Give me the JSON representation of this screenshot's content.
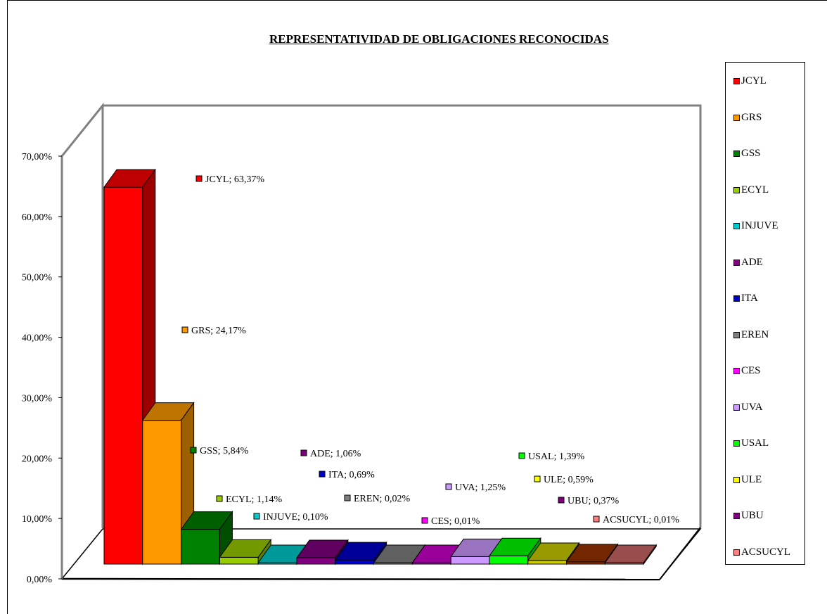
{
  "chart_data": {
    "type": "bar",
    "title": "REPRESENTATIVIDAD DE OBLIGACIONES RECONOCIDAS",
    "categories": [
      "JCYL",
      "GRS",
      "GSS",
      "ECYL",
      "INJUVE",
      "ADE",
      "ITA",
      "EREN",
      "CES",
      "UVA",
      "USAL",
      "ULE",
      "UBU",
      "ACSUCYL"
    ],
    "values": [
      63.37,
      24.17,
      5.84,
      1.14,
      0.1,
      1.06,
      0.69,
      0.02,
      0.01,
      1.25,
      1.39,
      0.59,
      0.37,
      0.01
    ],
    "data_labels": [
      "JCYL; 63,37%",
      "GRS; 24,17%",
      "GSS; 5,84%",
      "ECYL; 1,14%",
      "INJUVE; 0,10%",
      "ADE; 1,06%",
      "ITA; 0,69%",
      "EREN; 0,02%",
      "CES; 0,01%",
      "UVA; 1,25%",
      "USAL; 1,39%",
      "ULE; 0,59%",
      "UBU; 0,37%",
      "ACSUCYL; 0,01%"
    ],
    "colors": [
      "#ff0000",
      "#ff9900",
      "#008000",
      "#99cc00",
      "#00cccc",
      "#800080",
      "#0000cc",
      "#808080",
      "#ff00ff",
      "#cc99ff",
      "#00ff00",
      "#ffff00",
      "#800080",
      "#ff8080"
    ],
    "bar_colors": [
      "#ff0000",
      "#ff9900",
      "#008000",
      "#99cc00",
      "#00cccc",
      "#800080",
      "#0000cc",
      "#808080",
      "#cc00cc",
      "#cc99ff",
      "#00ff00",
      "#cccc00",
      "#993300",
      "#cc6666"
    ],
    "y_ticks": [
      "0,00%",
      "10,00%",
      "20,00%",
      "30,00%",
      "40,00%",
      "50,00%",
      "60,00%",
      "70,00%"
    ],
    "ylim": [
      0,
      70
    ],
    "legend": [
      "JCYL",
      "GRS",
      "GSS",
      "ECYL",
      "INJUVE",
      "ADE",
      "ITA",
      "EREN",
      "CES",
      "UVA",
      "USAL",
      "ULE",
      "UBU",
      "ACSUCYL"
    ],
    "legend_position": "right",
    "three_d": true
  }
}
